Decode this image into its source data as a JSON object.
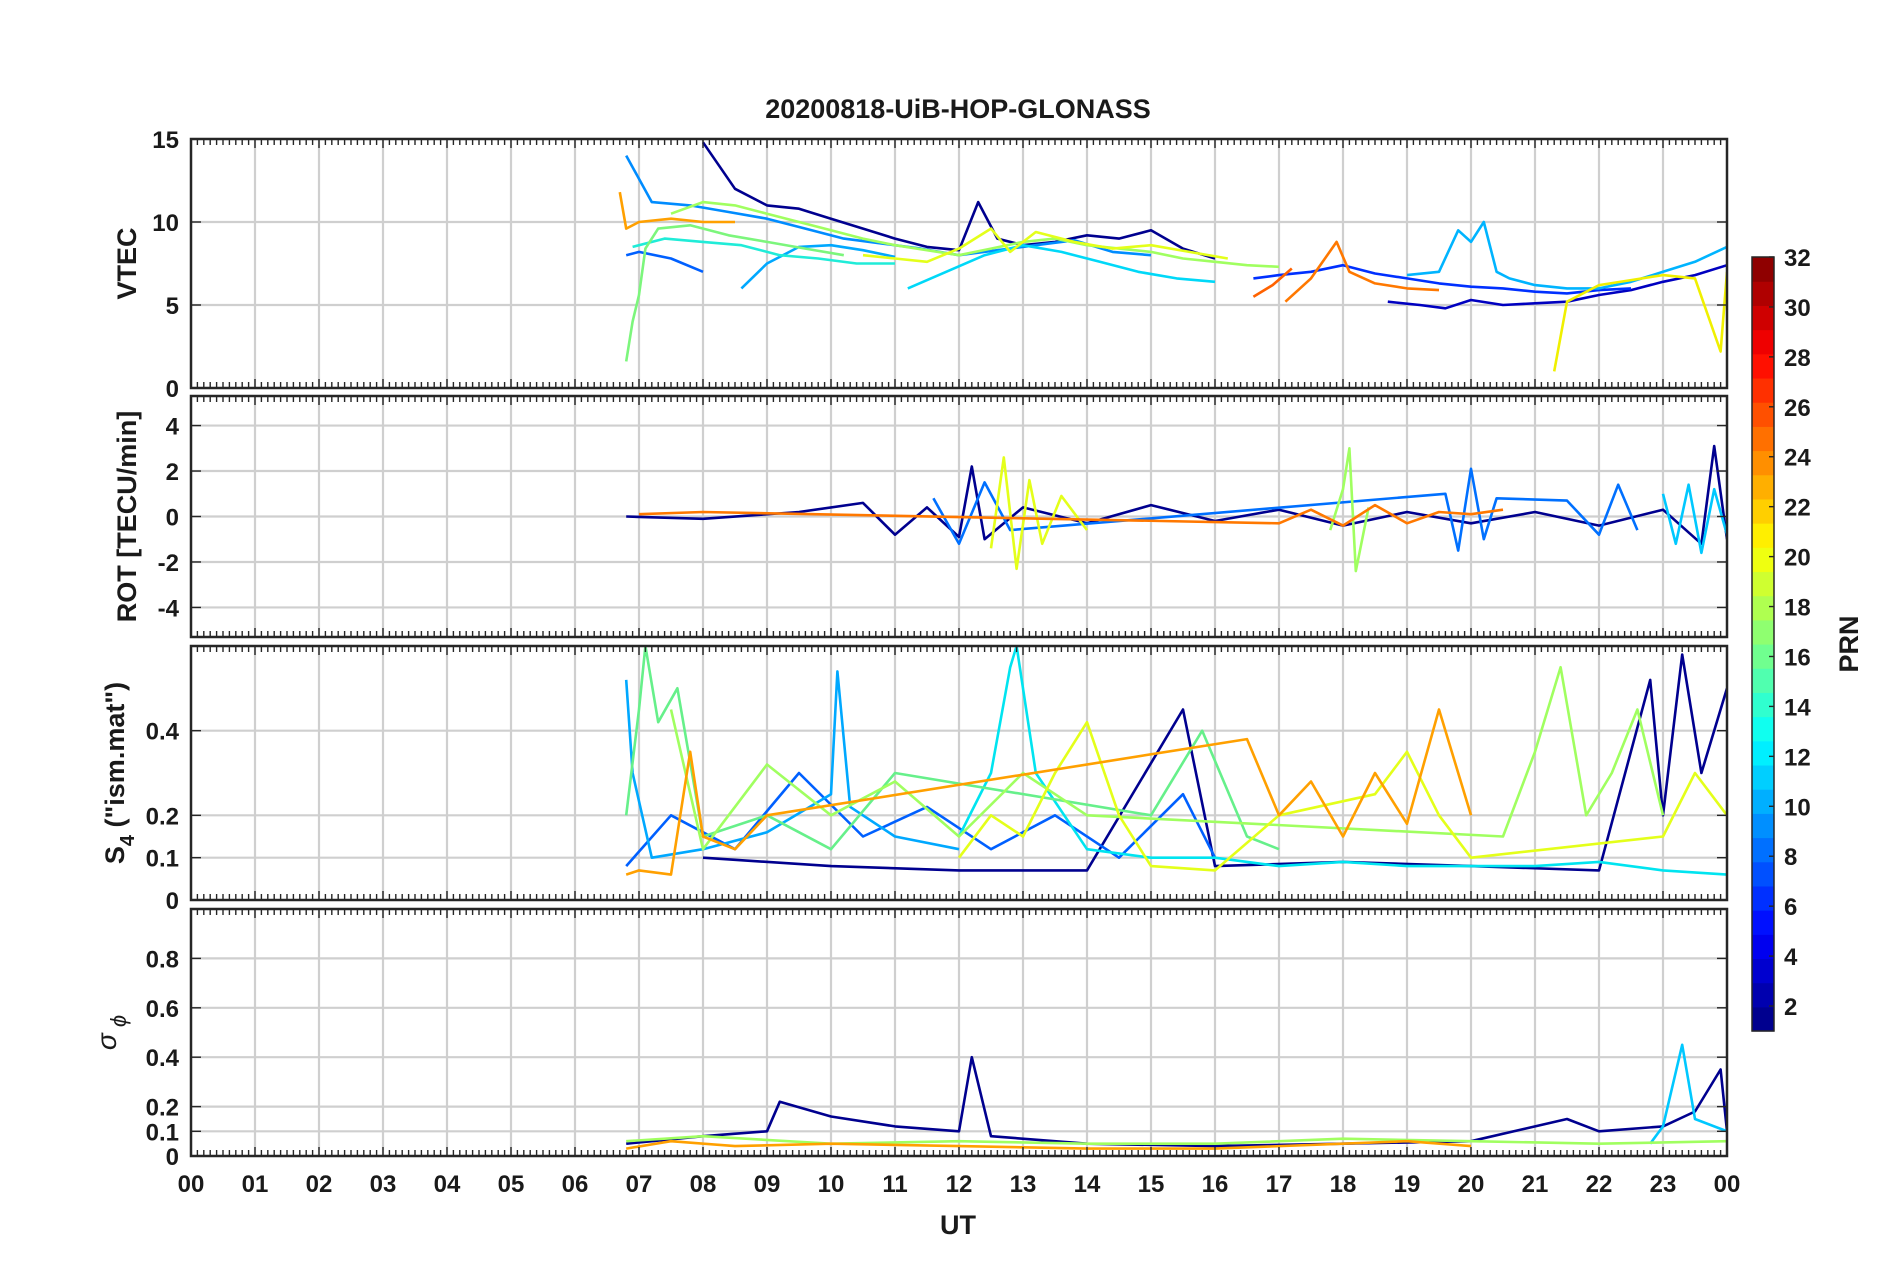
{
  "chart_data": [
    {
      "type": "line",
      "panel": "vtec",
      "title": "20200818-UiB-HOP-GLONASS",
      "ylabel": "VTEC",
      "ylim": [
        0,
        15
      ],
      "yticks": [
        0,
        5,
        10,
        15
      ],
      "xlim": [
        0,
        24
      ],
      "xlabel": "",
      "grid": true,
      "series": [
        {
          "prn": 2,
          "color": "#00008f",
          "x": [
            8.0,
            8.5,
            9.0,
            9.5,
            10.0,
            10.5,
            11.0,
            11.5,
            12.0,
            12.3,
            12.6,
            13.0,
            13.5,
            14.0,
            14.5,
            15.0,
            15.5,
            16.0
          ],
          "y": [
            14.8,
            12.0,
            11.0,
            10.8,
            10.2,
            9.6,
            9.0,
            8.5,
            8.3,
            11.2,
            9.0,
            8.6,
            8.8,
            9.2,
            9.0,
            9.5,
            8.4,
            7.8
          ]
        },
        {
          "prn": 3,
          "color": "#0000c0",
          "x": [
            18.7,
            19.2,
            19.6,
            20.0,
            20.5,
            21.0,
            21.5,
            22.0,
            22.5,
            23.0,
            23.5,
            24.0
          ],
          "y": [
            5.2,
            5.0,
            4.8,
            5.3,
            5.0,
            5.1,
            5.2,
            5.6,
            5.9,
            6.4,
            6.8,
            7.4
          ]
        },
        {
          "prn": 5,
          "color": "#0030ff",
          "x": [
            16.6,
            17.0,
            17.5,
            18.0,
            18.5,
            19.0,
            19.5,
            20.0,
            20.5,
            21.0,
            21.5,
            22.0,
            22.5
          ],
          "y": [
            6.6,
            6.8,
            7.0,
            7.4,
            6.9,
            6.6,
            6.3,
            6.1,
            6.0,
            5.8,
            5.7,
            5.9,
            6.0
          ]
        },
        {
          "prn": 7,
          "color": "#0060ff",
          "x": [
            6.8,
            7.0,
            7.5,
            8.0
          ],
          "y": [
            8.0,
            8.2,
            7.8,
            7.0
          ]
        },
        {
          "prn": 9,
          "color": "#008cff",
          "x": [
            6.8,
            7.2,
            7.8,
            8.4,
            9.0,
            9.6,
            10.2,
            10.8,
            11.4,
            12.0,
            12.6,
            13.2,
            13.8,
            14.4,
            15.0
          ],
          "y": [
            14.0,
            11.2,
            11.0,
            10.6,
            10.2,
            9.6,
            9.0,
            8.7,
            8.4,
            8.0,
            8.3,
            8.6,
            8.9,
            8.2,
            8.0
          ]
        },
        {
          "prn": 10,
          "color": "#00a8ff",
          "x": [
            8.6,
            9.0,
            9.5,
            10.0,
            10.5,
            11.0
          ],
          "y": [
            6.0,
            7.5,
            8.5,
            8.6,
            8.3,
            7.9
          ]
        },
        {
          "prn": 11,
          "color": "#00b4ff",
          "x": [
            19.0,
            19.5,
            19.8,
            20.0,
            20.2,
            20.4,
            20.6,
            21.0,
            21.5,
            22.0,
            22.5,
            23.0,
            23.5,
            24.0
          ],
          "y": [
            6.8,
            7.0,
            9.5,
            8.8,
            10.0,
            7.0,
            6.6,
            6.2,
            6.0,
            6.0,
            6.4,
            7.0,
            7.6,
            8.5
          ]
        },
        {
          "prn": 13,
          "color": "#00d8f8",
          "x": [
            11.2,
            11.8,
            12.4,
            13.0,
            13.6,
            14.2,
            14.8,
            15.4,
            16.0
          ],
          "y": [
            6.0,
            7.0,
            8.0,
            8.6,
            8.2,
            7.6,
            7.0,
            6.6,
            6.4
          ]
        },
        {
          "prn": 14,
          "color": "#20ecd8",
          "x": [
            6.9,
            7.4,
            8.0,
            8.6,
            9.2,
            9.8,
            10.4,
            11.0
          ],
          "y": [
            8.5,
            9.0,
            8.8,
            8.6,
            8.0,
            7.8,
            7.5,
            7.5
          ]
        },
        {
          "prn": 16,
          "color": "#7cf67c",
          "x": [
            6.8,
            6.9,
            7.0,
            7.1,
            7.3,
            7.8,
            8.4,
            9.0,
            9.6,
            10.2
          ],
          "y": [
            1.6,
            4.0,
            5.6,
            8.4,
            9.6,
            9.8,
            9.2,
            8.8,
            8.4,
            8.0
          ]
        },
        {
          "prn": 17,
          "color": "#a0ff60",
          "x": [
            7.5,
            8.0,
            8.5,
            9.0,
            9.5,
            10.0,
            10.5,
            11.0,
            11.5,
            12.0,
            12.5,
            13.0,
            13.5,
            14.0,
            14.5,
            15.0,
            15.5,
            16.0,
            16.5,
            17.0
          ],
          "y": [
            10.5,
            11.2,
            11.0,
            10.5,
            10.0,
            9.5,
            9.0,
            8.6,
            8.3,
            8.0,
            8.4,
            8.8,
            9.0,
            8.6,
            8.4,
            8.2,
            7.8,
            7.6,
            7.4,
            7.3
          ]
        },
        {
          "prn": 19,
          "color": "#e4ff1a",
          "x": [
            10.5,
            11.0,
            11.5,
            12.0,
            12.5,
            12.8,
            13.2,
            13.8,
            14.4,
            15.0,
            15.6,
            16.2
          ],
          "y": [
            8.0,
            7.8,
            7.6,
            8.4,
            9.6,
            8.2,
            9.4,
            8.8,
            8.4,
            8.6,
            8.2,
            7.8
          ]
        },
        {
          "prn": 20,
          "color": "#f0f000",
          "x": [
            21.3,
            21.5,
            22.0,
            22.5,
            23.0,
            23.5,
            23.9,
            24.0
          ],
          "y": [
            1.0,
            5.2,
            6.2,
            6.5,
            6.8,
            6.6,
            2.2,
            7.0
          ]
        },
        {
          "prn": 22,
          "color": "#ffa000",
          "x": [
            6.7,
            6.8,
            7.0,
            7.5,
            8.0,
            8.5
          ],
          "y": [
            11.8,
            9.6,
            10.0,
            10.2,
            10.0,
            10.0
          ]
        },
        {
          "prn": 24,
          "color": "#ff7800",
          "x": [
            17.1,
            17.5,
            17.9,
            18.1,
            18.5,
            19.0,
            19.5
          ],
          "y": [
            5.2,
            6.6,
            8.8,
            7.0,
            6.3,
            6.0,
            5.9
          ]
        },
        {
          "prn": 25,
          "color": "#ff6200",
          "x": [
            16.6,
            16.9,
            17.2
          ],
          "y": [
            5.5,
            6.2,
            7.2
          ]
        }
      ]
    },
    {
      "type": "line",
      "panel": "rot",
      "ylabel": "ROT [TECU/min]",
      "ylim": [
        -5.3,
        5.3
      ],
      "yticks": [
        -4,
        -2,
        0,
        2,
        4
      ],
      "xlim": [
        0,
        24
      ],
      "grid": true,
      "series": [
        {
          "prn": 2,
          "color": "#00008f",
          "x": [
            6.8,
            8.0,
            9.5,
            10.5,
            11.0,
            11.5,
            12.0,
            12.2,
            12.4,
            13.0,
            14.0,
            15.0,
            16.0,
            17.0,
            18.0,
            19.0,
            20.0,
            21.0,
            22.0,
            23.0,
            23.6,
            23.8,
            24.0
          ],
          "y": [
            0.0,
            -0.1,
            0.2,
            0.6,
            -0.8,
            0.4,
            -0.9,
            2.2,
            -1.0,
            0.4,
            -0.3,
            0.5,
            -0.2,
            0.3,
            -0.4,
            0.2,
            -0.3,
            0.2,
            -0.4,
            0.3,
            -1.2,
            3.1,
            -1.0
          ]
        },
        {
          "prn": 8,
          "color": "#0070ff",
          "x": [
            11.6,
            12.0,
            12.4,
            12.8,
            19.6,
            19.8,
            20.0,
            20.2,
            20.4,
            21.5,
            22.0,
            22.3,
            22.6
          ],
          "y": [
            0.8,
            -1.2,
            1.5,
            -0.6,
            1.0,
            -1.5,
            2.1,
            -1.0,
            0.8,
            0.7,
            -0.8,
            1.4,
            -0.6
          ]
        },
        {
          "prn": 12,
          "color": "#00c8ff",
          "x": [
            23.0,
            23.2,
            23.4,
            23.6,
            23.8,
            24.0
          ],
          "y": [
            1.0,
            -1.2,
            1.4,
            -1.6,
            1.2,
            -0.8
          ]
        },
        {
          "prn": 17,
          "color": "#a0ff60",
          "x": [
            17.8,
            18.0,
            18.1,
            18.2,
            18.4
          ],
          "y": [
            -0.6,
            1.2,
            3.0,
            -2.4,
            0.4
          ]
        },
        {
          "prn": 19,
          "color": "#e4ff1a",
          "x": [
            12.5,
            12.7,
            12.9,
            13.1,
            13.3,
            13.6,
            14.0
          ],
          "y": [
            -1.4,
            2.6,
            -2.3,
            1.6,
            -1.2,
            0.9,
            -0.6
          ]
        },
        {
          "prn": 24,
          "color": "#ff7800",
          "x": [
            7.0,
            8.0,
            17.0,
            17.5,
            18.0,
            18.5,
            19.0,
            19.5,
            20.0,
            20.5
          ],
          "y": [
            0.1,
            0.2,
            -0.3,
            0.3,
            -0.4,
            0.5,
            -0.3,
            0.2,
            0.1,
            0.3
          ]
        }
      ]
    },
    {
      "type": "line",
      "panel": "s4",
      "ylabel": "S4 (\"ism.mat\")",
      "ylim": [
        0,
        0.6
      ],
      "yticks": [
        0,
        0.1,
        0.2,
        0.4
      ],
      "xlim": [
        0,
        24
      ],
      "grid": true,
      "series": [
        {
          "prn": 2,
          "color": "#00008f",
          "x": [
            8.0,
            10.0,
            12.0,
            14.0,
            15.5,
            16.0,
            18.0,
            20.0,
            22.0,
            22.8,
            23.0,
            23.3,
            23.6,
            24.0
          ],
          "y": [
            0.1,
            0.08,
            0.07,
            0.07,
            0.45,
            0.08,
            0.09,
            0.08,
            0.07,
            0.52,
            0.2,
            0.58,
            0.3,
            0.5
          ]
        },
        {
          "prn": 7,
          "color": "#0060ff",
          "x": [
            6.8,
            7.5,
            8.5,
            9.5,
            10.5,
            11.5,
            12.5,
            13.5,
            14.5,
            15.5,
            16.0
          ],
          "y": [
            0.08,
            0.2,
            0.12,
            0.3,
            0.15,
            0.22,
            0.12,
            0.2,
            0.1,
            0.25,
            0.1
          ]
        },
        {
          "prn": 10,
          "color": "#00a8ff",
          "x": [
            6.8,
            6.9,
            7.2,
            8.0,
            9.0,
            10.0,
            10.1,
            10.3,
            11.0,
            12.0
          ],
          "y": [
            0.52,
            0.3,
            0.1,
            0.12,
            0.16,
            0.25,
            0.54,
            0.22,
            0.15,
            0.12
          ]
        },
        {
          "prn": 13,
          "color": "#00e4f0",
          "x": [
            12.0,
            12.5,
            12.8,
            12.9,
            13.2,
            14.0,
            15.0,
            16.0,
            17.0,
            18.0,
            19.0,
            20.0,
            21.0,
            22.0,
            23.0,
            24.0
          ],
          "y": [
            0.15,
            0.3,
            0.55,
            0.6,
            0.3,
            0.12,
            0.1,
            0.1,
            0.08,
            0.09,
            0.08,
            0.08,
            0.08,
            0.09,
            0.07,
            0.06
          ]
        },
        {
          "prn": 15,
          "color": "#66f08a",
          "x": [
            6.8,
            7.0,
            7.1,
            7.3,
            7.6,
            8.0,
            9.0,
            10.0,
            11.0,
            15.0,
            15.8,
            16.5,
            17.0
          ],
          "y": [
            0.2,
            0.45,
            0.6,
            0.42,
            0.5,
            0.15,
            0.2,
            0.12,
            0.3,
            0.2,
            0.4,
            0.15,
            0.12
          ]
        },
        {
          "prn": 17,
          "color": "#a0ff60",
          "x": [
            7.5,
            8.0,
            9.0,
            10.0,
            11.0,
            12.0,
            13.0,
            14.0,
            20.5,
            21.0,
            21.4,
            21.8,
            22.2,
            22.6,
            23.0
          ],
          "y": [
            0.45,
            0.12,
            0.32,
            0.2,
            0.28,
            0.15,
            0.3,
            0.2,
            0.15,
            0.35,
            0.55,
            0.2,
            0.3,
            0.45,
            0.2
          ]
        },
        {
          "prn": 19,
          "color": "#e4ff1a",
          "x": [
            12.0,
            12.5,
            13.0,
            13.5,
            14.0,
            14.5,
            15.0,
            16.0,
            17.0,
            18.5,
            19.0,
            19.5,
            20.0,
            23.0,
            23.5,
            24.0
          ],
          "y": [
            0.1,
            0.2,
            0.15,
            0.3,
            0.42,
            0.2,
            0.08,
            0.07,
            0.2,
            0.25,
            0.35,
            0.2,
            0.1,
            0.15,
            0.3,
            0.2
          ]
        },
        {
          "prn": 22,
          "color": "#ffa000",
          "x": [
            6.8,
            7.0,
            7.5,
            7.8,
            8.0,
            8.5,
            9.0,
            16.5,
            17.0,
            17.5,
            18.0,
            18.5,
            19.0,
            19.5,
            20.0
          ],
          "y": [
            0.06,
            0.07,
            0.06,
            0.35,
            0.15,
            0.12,
            0.2,
            0.38,
            0.2,
            0.28,
            0.15,
            0.3,
            0.18,
            0.45,
            0.2
          ]
        }
      ]
    },
    {
      "type": "line",
      "panel": "sigma_phi",
      "ylabel": "σ ϕ",
      "ylim": [
        0,
        1.0
      ],
      "yticks": [
        0,
        0.1,
        0.2,
        0.4,
        0.6,
        0.8
      ],
      "xlim": [
        0,
        24
      ],
      "grid": true,
      "series": [
        {
          "prn": 2,
          "color": "#00008f",
          "x": [
            6.8,
            8.0,
            9.0,
            9.2,
            10.0,
            11.0,
            12.0,
            12.2,
            12.5,
            14.0,
            16.0,
            18.0,
            20.0,
            21.5,
            22.0,
            23.0,
            23.5,
            23.9,
            24.0
          ],
          "y": [
            0.05,
            0.08,
            0.1,
            0.22,
            0.16,
            0.12,
            0.1,
            0.4,
            0.08,
            0.05,
            0.04,
            0.05,
            0.06,
            0.15,
            0.1,
            0.12,
            0.18,
            0.35,
            0.1
          ]
        },
        {
          "prn": 12,
          "color": "#00c8ff",
          "x": [
            22.8,
            23.0,
            23.3,
            23.5,
            24.0
          ],
          "y": [
            0.05,
            0.12,
            0.45,
            0.15,
            0.1
          ]
        },
        {
          "prn": 17,
          "color": "#a0ff60",
          "x": [
            6.8,
            8.0,
            10.0,
            12.0,
            14.0,
            16.0,
            18.0,
            20.0,
            22.0,
            24.0
          ],
          "y": [
            0.06,
            0.08,
            0.05,
            0.06,
            0.05,
            0.05,
            0.07,
            0.06,
            0.05,
            0.06
          ]
        },
        {
          "prn": 22,
          "color": "#ffa000",
          "x": [
            6.8,
            7.5,
            8.5,
            10.0,
            12.0,
            14.0,
            16.0,
            18.0,
            19.0,
            20.0
          ],
          "y": [
            0.03,
            0.06,
            0.04,
            0.05,
            0.04,
            0.03,
            0.03,
            0.05,
            0.06,
            0.04
          ]
        }
      ]
    }
  ],
  "xaxis": {
    "label": "UT",
    "tick_labels": [
      "00",
      "01",
      "02",
      "03",
      "04",
      "05",
      "06",
      "07",
      "08",
      "09",
      "10",
      "11",
      "12",
      "13",
      "14",
      "15",
      "16",
      "17",
      "18",
      "19",
      "20",
      "21",
      "22",
      "23",
      "00"
    ]
  },
  "colorbar": {
    "label": "PRN",
    "range": [
      1,
      32
    ],
    "tick_labels": [
      "2",
      "4",
      "6",
      "8",
      "10",
      "12",
      "14",
      "16",
      "18",
      "20",
      "22",
      "24",
      "26",
      "28",
      "30",
      "32"
    ],
    "colormap": "jet"
  }
}
